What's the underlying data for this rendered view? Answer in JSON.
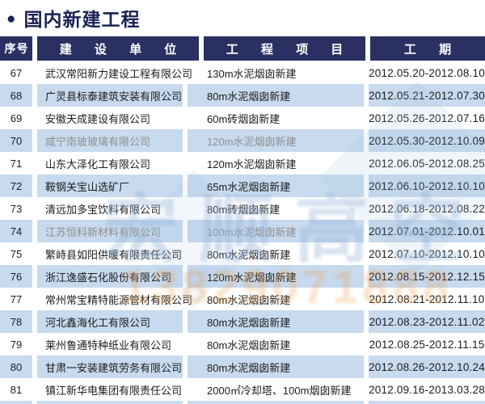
{
  "title": {
    "bullet": "●",
    "text": "国内新建工程"
  },
  "colors": {
    "header_navy": "#2a3062",
    "stripe_blue": "#c7daee",
    "title_navy": "#1b2153"
  },
  "table": {
    "headers": {
      "no": "序号",
      "company": "建 设 单 位",
      "project": "工 程 项 目",
      "period": "工 期"
    },
    "rows": [
      {
        "no": "67",
        "company": "武汉常阳新力建设工程有限公司",
        "project": "130m水泥烟囱新建",
        "period": "2012.05.20-2012.08.10"
      },
      {
        "no": "68",
        "company": "广灵县标泰建筑安装有限公司",
        "project": "80m水泥烟囱新建",
        "period": "2012.05.21-2012.07.30"
      },
      {
        "no": "69",
        "company": "安徽天成建设有限公司",
        "project": "60m砖烟囱新建",
        "period": "2012.05.26-2012.07.16"
      },
      {
        "no": "70",
        "company": "咸宁南玻玻璃有限公司",
        "project": "120m水泥烟囱新建",
        "period": "2012.05.30-2012.10.09",
        "muted": true
      },
      {
        "no": "71",
        "company": "山东大泽化工有限公司",
        "project": "120m水泥烟囱新建",
        "period": "2012.06.05-2012.08.25"
      },
      {
        "no": "72",
        "company": "鞍钢关宝山选矿厂",
        "project": "65m水泥烟囱新建",
        "period": "2012.06.10-2012.10.10"
      },
      {
        "no": "73",
        "company": "清远加多宝饮料有限公司",
        "project": "80m砖烟囱新建",
        "period": "2012.06.18-2012.08.22"
      },
      {
        "no": "74",
        "company": "江苏恒科新材料有限公司",
        "project": "100m水泥烟囱新建",
        "period": "2012.07.01-2012.10.01",
        "muted": true
      },
      {
        "no": "75",
        "company": "繁峙县如阳供暖有限责任公司",
        "project": "80m水泥烟囱新建",
        "period": "2012.07.10-2012.10.10"
      },
      {
        "no": "76",
        "company": "浙江逸盛石化股份有限公司",
        "project": "120m水泥烟囱新建",
        "period": "2012.08.15-2012.12.15"
      },
      {
        "no": "77",
        "company": "常州常宝精特能源管材有限公司",
        "project": "80m水泥烟囱新建",
        "period": "2012.08.21-2012.11.10"
      },
      {
        "no": "78",
        "company": "河北鑫海化工有限公司",
        "project": "80m水泥烟囱新建",
        "period": "2012.08.23-2012.11.02"
      },
      {
        "no": "79",
        "company": "莱州鲁通特种纸业有限公司",
        "project": "80m水泥烟囱新建",
        "period": "2012.08.25-2012.11.15"
      },
      {
        "no": "80",
        "company": "甘肃一安装建筑劳务有限公司",
        "project": "80m水泥烟囱新建",
        "period": "2012.08.26-2012.10.24"
      },
      {
        "no": "81",
        "company": "镇江新华电集团有限责任公司",
        "project": "2000㎡冷却塔、100m烟囱新建",
        "period": "2012.09.16-2013.03.28"
      }
    ]
  },
  "watermark": {
    "line1": "宏顺高空",
    "line2": "13829071888"
  }
}
